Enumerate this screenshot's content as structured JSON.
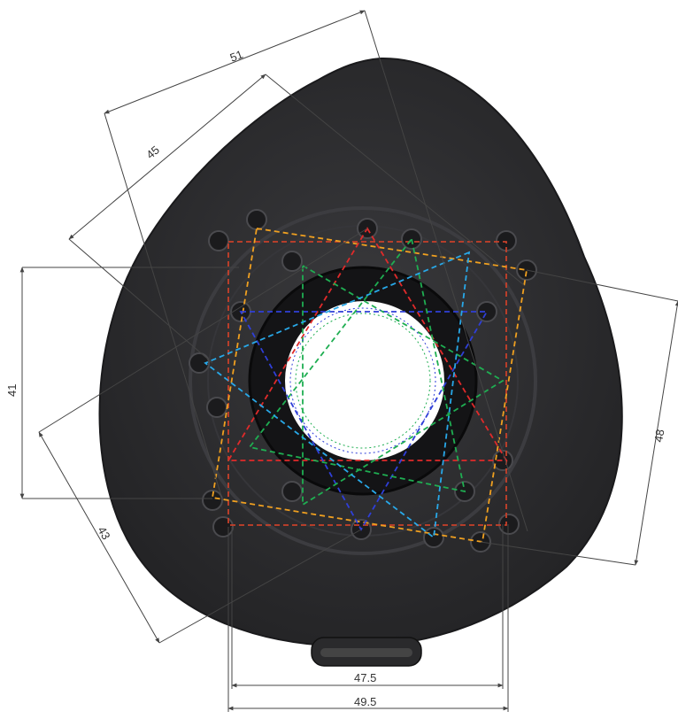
{
  "dimensions": {
    "top_width_outer": "51",
    "top_width_inner": "45",
    "left_height": "41",
    "left_diagonal": "43",
    "right_diagonal": "48",
    "bottom_inner": "47.5",
    "bottom_outer": "49.5"
  },
  "colors": {
    "body": "#2f2f31",
    "body_edge": "#1a1a1c",
    "hole": "#ffffff",
    "dim_line": "#444444",
    "pattern_red": "#e02a2a",
    "pattern_blue": "#2f3fd8",
    "pattern_green": "#1fae52",
    "pattern_cyan": "#28a8e8",
    "pattern_orange": "#f0a020",
    "pattern_darkred": "#c8402a"
  },
  "icons": {
    "mount_hole": "circle-hole-icon",
    "cable_nub": "cable-outlet-icon"
  }
}
